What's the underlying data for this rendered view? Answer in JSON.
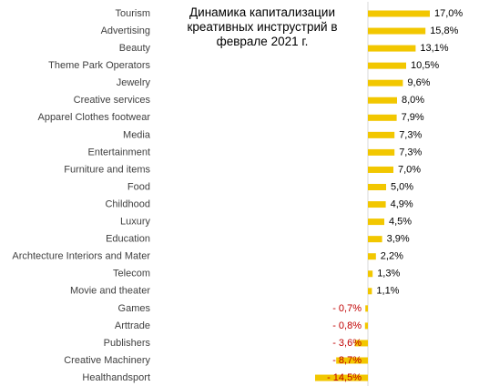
{
  "chart_data": {
    "type": "bar",
    "orientation": "horizontal",
    "title": "Динамика капитализации креативных инструстрий в феврале 2021 г.",
    "title_lines": [
      "Динамика капитализации",
      "креативных инструстрий в",
      "феврале 2021 г."
    ],
    "categories": [
      "Tourism",
      "Advertising",
      "Beauty",
      "Theme Park Operators",
      "Jewelry",
      "Creative services",
      "Apparel Clothes footwear",
      "Media",
      "Entertainment",
      "Furniture and items",
      "Food",
      "Childhood",
      "Luxury",
      "Education",
      "Archtecture Interiors and Mater",
      "Telecom",
      "Movie and theater",
      "Games",
      "Arttrade",
      "Publishers",
      "Creative Machinery",
      "Healthandsport"
    ],
    "values": [
      17.0,
      15.8,
      13.1,
      10.5,
      9.6,
      8.0,
      7.9,
      7.3,
      7.3,
      7.0,
      5.0,
      4.9,
      4.5,
      3.9,
      2.2,
      1.3,
      1.1,
      -0.7,
      -0.8,
      -3.6,
      -8.7,
      -14.5
    ],
    "value_labels": [
      "17,0%",
      "15,8%",
      "13,1%",
      "10,5%",
      "9,6%",
      "8,0%",
      "7,9%",
      "7,3%",
      "7,3%",
      "7,0%",
      "5,0%",
      "4,9%",
      "4,5%",
      "3,9%",
      "2,2%",
      "1,3%",
      "1,1%",
      "- 0,7%",
      "- 0,8%",
      "- 3,6%",
      "- 8,7%",
      "- 14,5%"
    ],
    "unit": "%",
    "grid": false,
    "legend": "none",
    "colors": {
      "bar": "#F2C700",
      "axis": "#D9D9D9",
      "positive_label": "#000000",
      "negative_label": "#C00000",
      "category_label": "#404040"
    }
  }
}
